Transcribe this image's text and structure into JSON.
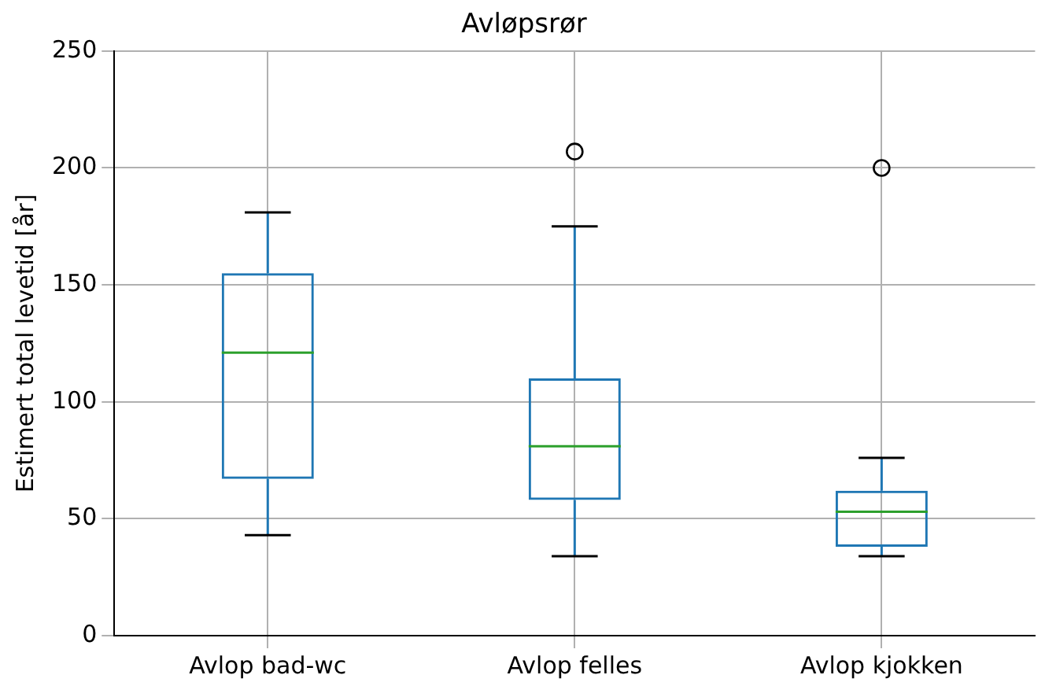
{
  "chart_data": {
    "type": "box",
    "title": "Avløpsrør",
    "ylabel": "Estimert total levetid [år]",
    "categories": [
      "Avlop bad-wc",
      "Avlop felles",
      "Avlop kjokken"
    ],
    "boxes": [
      {
        "low": 43,
        "q1": 67,
        "median": 121,
        "q3": 155,
        "high": 181
      },
      {
        "low": 34,
        "q1": 58,
        "median": 81,
        "q3": 110,
        "high": 175,
        "outliers": [
          207
        ]
      },
      {
        "low": 34,
        "q1": 38,
        "median": 53,
        "q3": 62,
        "high": 76,
        "outliers": [
          200
        ]
      }
    ],
    "color": "#1f77b4",
    "ylim": [
      0,
      250
    ],
    "yticks": [
      0,
      50,
      100,
      150,
      200,
      250
    ],
    "grid": true,
    "legend": false
  }
}
